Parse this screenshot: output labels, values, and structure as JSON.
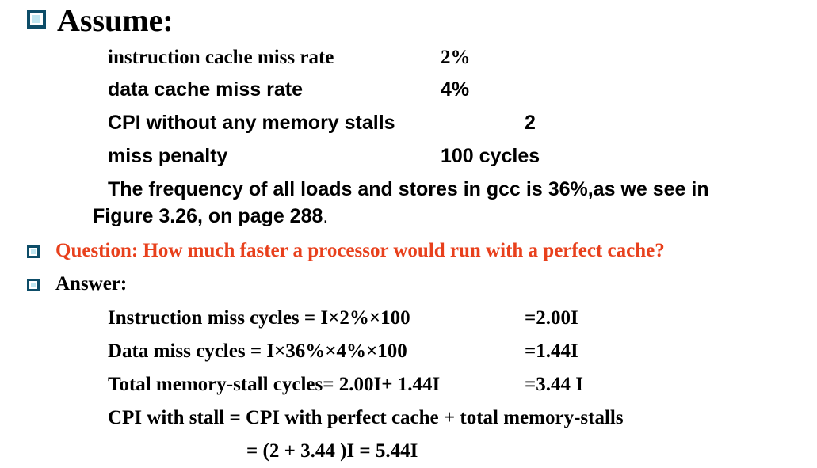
{
  "assume": {
    "heading": "Assume:",
    "rows": [
      {
        "label": "instruction cache miss rate",
        "value": "2%"
      },
      {
        "label": "data cache miss rate",
        "value": "4%"
      },
      {
        "label": "CPI without any memory stalls",
        "value": "2"
      },
      {
        "label": "miss penalty",
        "value": "100 cycles"
      }
    ],
    "frequency_line1": "The frequency of all loads and stores in gcc is 36%,as we see in",
    "frequency_line2": "Figure 3.26, on page 288",
    "frequency_period": "."
  },
  "question": "Question: How much faster a processor would run with a perfect cache?",
  "answer": {
    "heading": "Answer:",
    "rows": [
      {
        "expr": "Instruction miss cycles = I×2%×100",
        "result": "=2.00I"
      },
      {
        "expr": "Data miss cycles = I×36%×4%×100",
        "result": "=1.44I"
      },
      {
        "expr": "Total memory-stall cycles= 2.00I+ 1.44I",
        "result": "=3.44 I"
      }
    ],
    "cpi_line1": "CPI with stall = CPI with perfect cache + total memory-stalls",
    "cpi_line2": "= (2 + 3.44 )I = 5.44I"
  },
  "colors": {
    "bullet": "#0d4d68",
    "question": "#e8401c"
  }
}
